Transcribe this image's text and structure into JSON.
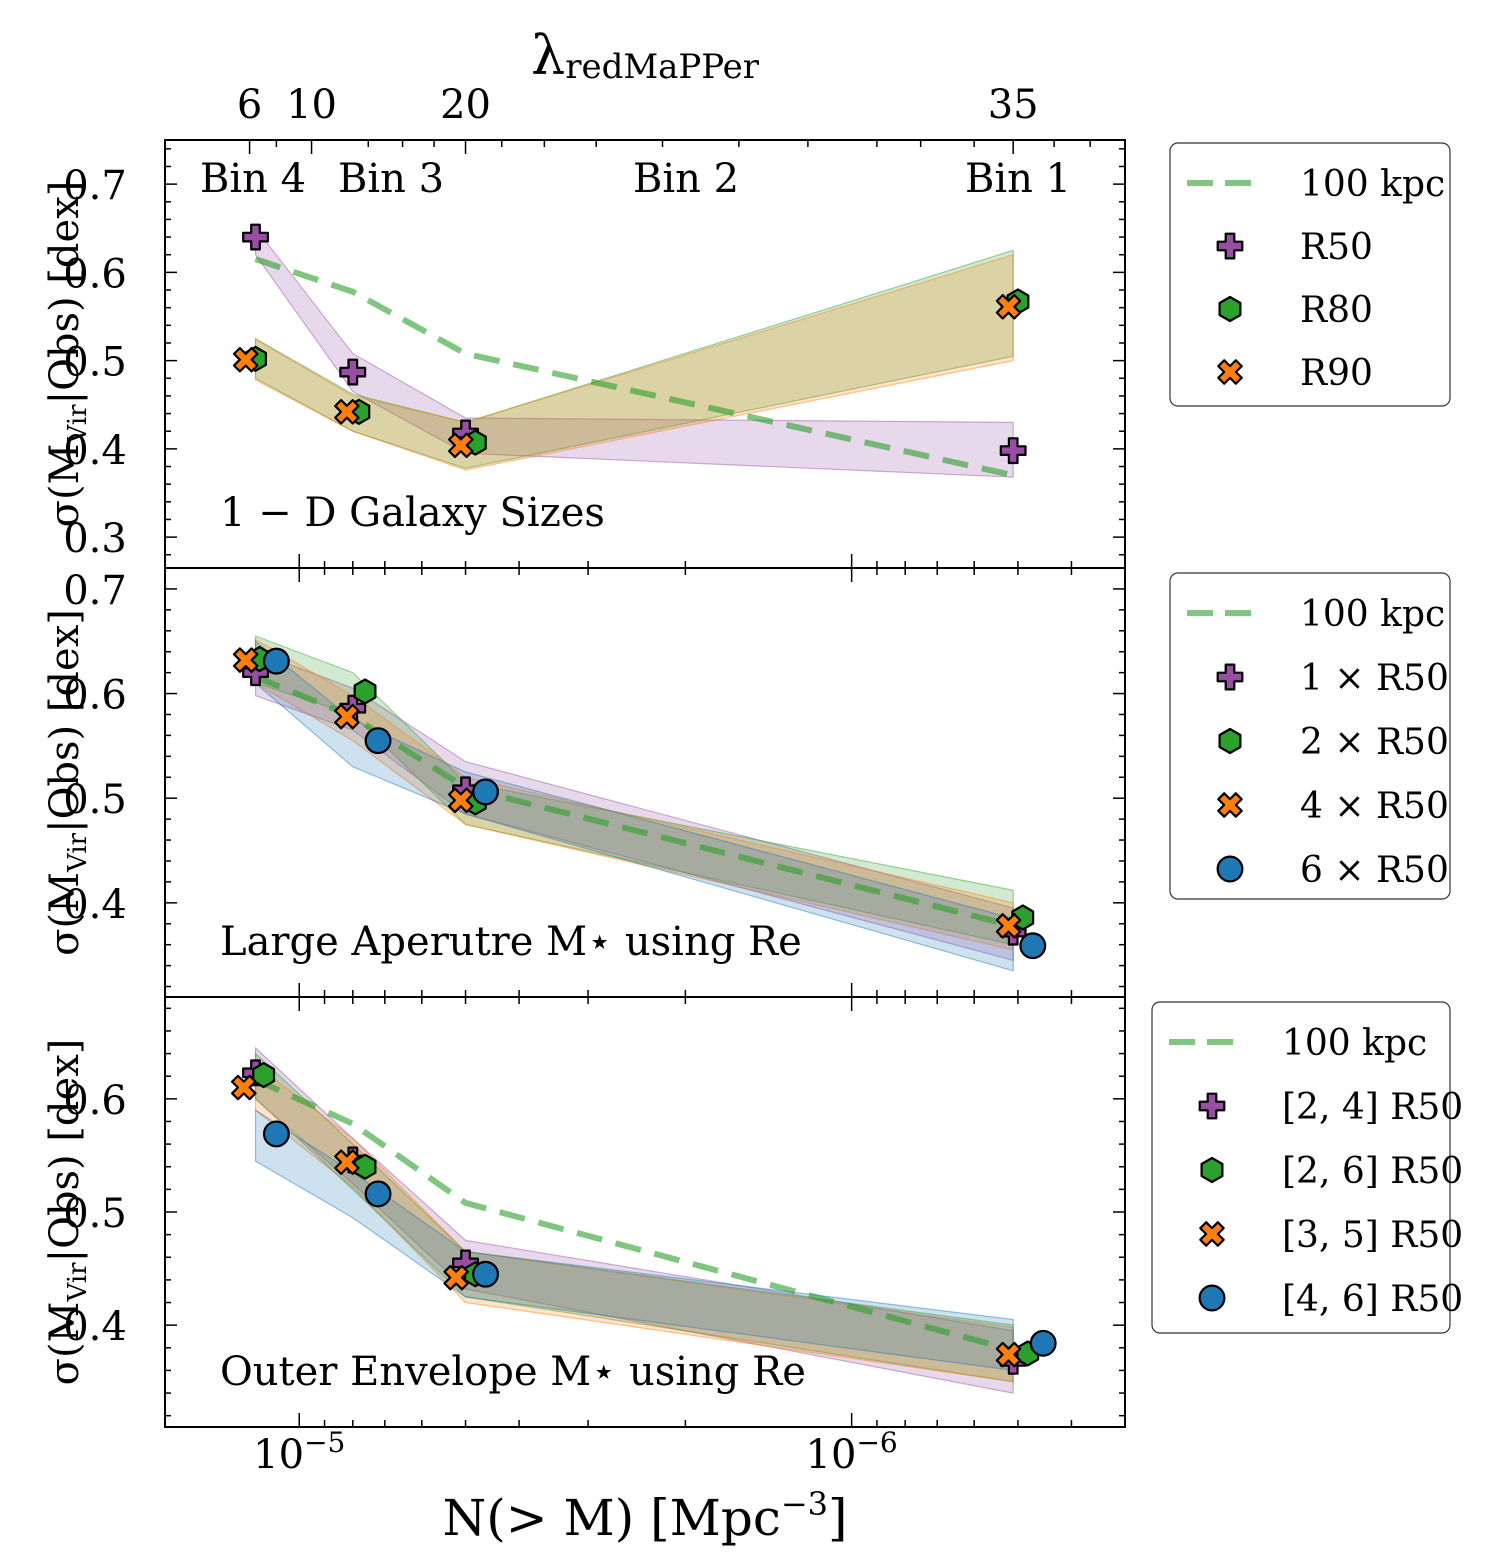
{
  "figure": {
    "top_axis_label": "λ",
    "top_axis_label_sub": "redMaPPer",
    "x_label": "N(> M) [Mpc",
    "x_label_sup": "−3",
    "x_label_end": "]",
    "y_label_pre": "σ(M",
    "y_label_sub": "Vir",
    "y_label_post": "|Obs) [dex]"
  },
  "chart_data": [
    {
      "type": "scatter",
      "panel_label": "1 − D Galaxy Sizes",
      "xscale": "log-inverted",
      "xlim": [
        1.75e-05,
        3.2e-07
      ],
      "ylim": [
        0.265,
        0.75
      ],
      "yticks": [
        0.3,
        0.4,
        0.5,
        0.6,
        0.7
      ],
      "ytick_labels": [
        "0.3",
        "0.4",
        "0.5",
        "0.6",
        "0.7"
      ],
      "top_axis": {
        "label": "λredMaPPer",
        "ticks": [
          {
            "x": 1.23e-05,
            "label": "6"
          },
          {
            "x": 9.5e-06,
            "label": "10"
          },
          {
            "x": 5e-06,
            "label": "20"
          },
          {
            "x": 5.1e-07,
            "label": "35"
          }
        ]
      },
      "bins": [
        {
          "x": 1.18e-05,
          "label": "Bin 4"
        },
        {
          "x": 8.6e-06,
          "label": "Bin 3"
        },
        {
          "x": 4.9e-06,
          "label": "Bin 2"
        },
        {
          "x": 5.5e-07,
          "label": "Bin 1"
        }
      ],
      "reference": {
        "name": "100 kpc",
        "x": [
          1.2e-05,
          8e-06,
          5e-06,
          5.1e-07
        ],
        "y": [
          0.615,
          0.578,
          0.508,
          0.37
        ]
      },
      "series": [
        {
          "name": "R50",
          "marker": "plus",
          "color": "#984ea3",
          "x": [
            1.2e-05,
            8e-06,
            5e-06,
            5.1e-07
          ],
          "y": [
            0.64,
            0.487,
            0.418,
            0.398
          ],
          "band_low": [
            0.62,
            0.465,
            0.395,
            0.368
          ],
          "band_high": [
            0.65,
            0.508,
            0.435,
            0.43
          ]
        },
        {
          "name": "R80",
          "marker": "hexagon",
          "color": "#2ca02c",
          "x": [
            1.2e-05,
            7.8e-06,
            4.8e-06,
            5e-07
          ],
          "y": [
            0.502,
            0.442,
            0.407,
            0.567
          ],
          "band_low": [
            0.48,
            0.42,
            0.378,
            0.505
          ],
          "band_high": [
            0.525,
            0.462,
            0.43,
            0.625
          ]
        },
        {
          "name": "R90",
          "marker": "x",
          "color": "#ff7f0e",
          "x": [
            1.25e-05,
            8.2e-06,
            5.1e-06,
            5.2e-07
          ],
          "y": [
            0.501,
            0.442,
            0.404,
            0.561
          ],
          "band_low": [
            0.478,
            0.42,
            0.376,
            0.5
          ],
          "band_high": [
            0.524,
            0.46,
            0.43,
            0.62
          ]
        }
      ],
      "legend": [
        "100 kpc",
        "R50",
        "R80",
        "R90"
      ]
    },
    {
      "type": "scatter",
      "panel_label": "Large Aperutre M⋆ using Re",
      "xscale": "log-inverted",
      "xlim": [
        1.75e-05,
        3.2e-07
      ],
      "ylim": [
        0.31,
        0.72
      ],
      "yticks": [
        0.4,
        0.5,
        0.6,
        0.7
      ],
      "ytick_labels": [
        "0.4",
        "0.5",
        "0.6",
        "0.7"
      ],
      "reference": {
        "name": "100 kpc",
        "x": [
          1.2e-05,
          8e-06,
          5e-06,
          5.1e-07
        ],
        "y": [
          0.616,
          0.578,
          0.51,
          0.378
        ]
      },
      "series": [
        {
          "name": "1 × R50",
          "marker": "plus",
          "color": "#984ea3",
          "x": [
            1.2e-05,
            8e-06,
            5e-06,
            5.1e-07
          ],
          "y": [
            0.62,
            0.586,
            0.508,
            0.372
          ],
          "band_low": [
            0.598,
            0.565,
            0.485,
            0.345
          ],
          "band_high": [
            0.64,
            0.605,
            0.535,
            0.395
          ]
        },
        {
          "name": "2 × R50",
          "marker": "hexagon",
          "color": "#2ca02c",
          "x": [
            1.18e-05,
            7.6e-06,
            4.8e-06,
            4.9e-07
          ],
          "y": [
            0.633,
            0.602,
            0.496,
            0.386
          ],
          "band_low": [
            0.61,
            0.58,
            0.475,
            0.36
          ],
          "band_high": [
            0.655,
            0.62,
            0.515,
            0.412
          ]
        },
        {
          "name": "4 × R50",
          "marker": "x",
          "color": "#ff7f0e",
          "x": [
            1.25e-05,
            8.2e-06,
            5.1e-06,
            5.2e-07
          ],
          "y": [
            0.632,
            0.578,
            0.498,
            0.378
          ],
          "band_low": [
            0.61,
            0.555,
            0.475,
            0.355
          ],
          "band_high": [
            0.652,
            0.598,
            0.52,
            0.4
          ]
        },
        {
          "name": "6 × R50",
          "marker": "circle",
          "color": "#1f77b4",
          "x": [
            1.1e-05,
            7.2e-06,
            4.6e-06,
            4.7e-07
          ],
          "y": [
            0.631,
            0.555,
            0.506,
            0.359
          ],
          "band_low": [
            0.61,
            0.53,
            0.485,
            0.335
          ],
          "band_high": [
            0.65,
            0.575,
            0.525,
            0.385
          ]
        }
      ],
      "legend": [
        "100 kpc",
        "1 × R50",
        "2 × R50",
        "4 × R50",
        "6 × R50"
      ]
    },
    {
      "type": "scatter",
      "panel_label": "Outer Envelope M⋆ using Re",
      "xscale": "log-inverted",
      "xlim": [
        1.75e-05,
        3.2e-07
      ],
      "ylim": [
        0.31,
        0.69
      ],
      "yticks": [
        0.4,
        0.5,
        0.6
      ],
      "ytick_labels": [
        "0.4",
        "0.5",
        "0.6"
      ],
      "xticks": [
        1e-05,
        1e-06
      ],
      "xtick_labels": [
        "10−5",
        "10−6"
      ],
      "reference": {
        "name": "100 kpc",
        "x": [
          1.2e-05,
          8e-06,
          5e-06,
          5.1e-07
        ],
        "y": [
          0.617,
          0.578,
          0.508,
          0.378
        ]
      },
      "series": [
        {
          "name": "[2, 4] R50",
          "marker": "plus",
          "color": "#984ea3",
          "x": [
            1.2e-05,
            8e-06,
            5e-06,
            5.1e-07
          ],
          "y": [
            0.623,
            0.546,
            0.455,
            0.368
          ],
          "band_low": [
            0.6,
            0.525,
            0.432,
            0.34
          ],
          "band_high": [
            0.645,
            0.565,
            0.475,
            0.395
          ]
        },
        {
          "name": "[2, 6] R50",
          "marker": "hexagon",
          "color": "#2ca02c",
          "x": [
            1.16e-05,
            7.6e-06,
            4.8e-06,
            4.8e-07
          ],
          "y": [
            0.621,
            0.54,
            0.445,
            0.375
          ],
          "band_low": [
            0.6,
            0.52,
            0.425,
            0.35
          ],
          "band_high": [
            0.64,
            0.56,
            0.465,
            0.4
          ]
        },
        {
          "name": "[3, 5] R50",
          "marker": "x",
          "color": "#ff7f0e",
          "x": [
            1.26e-05,
            8.2e-06,
            5.2e-06,
            5.2e-07
          ],
          "y": [
            0.61,
            0.544,
            0.442,
            0.374
          ],
          "band_low": [
            0.59,
            0.522,
            0.42,
            0.35
          ],
          "band_high": [
            0.63,
            0.565,
            0.465,
            0.398
          ]
        },
        {
          "name": "[4, 6] R50",
          "marker": "circle",
          "color": "#1f77b4",
          "x": [
            1.1e-05,
            7.2e-06,
            4.6e-06,
            4.5e-07
          ],
          "y": [
            0.569,
            0.516,
            0.445,
            0.384
          ],
          "band_low": [
            0.545,
            0.495,
            0.425,
            0.36
          ],
          "band_high": [
            0.59,
            0.535,
            0.465,
            0.405
          ]
        }
      ],
      "legend": [
        "100 kpc",
        "[2, 4] R50",
        "[2, 6] R50",
        "[3, 5] R50",
        "[4, 6] R50"
      ]
    }
  ]
}
